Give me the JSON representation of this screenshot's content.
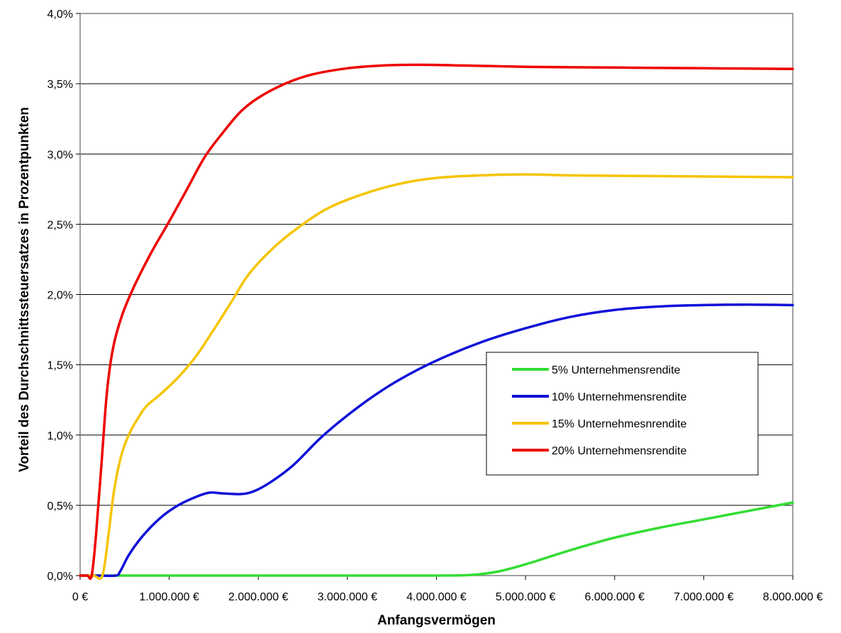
{
  "chart_data": {
    "type": "line",
    "xlabel": "Anfangsvermögen",
    "ylabel": "Vorteil des Durchschnittssteuersatzes in Prozentpunkten",
    "xlim": [
      0,
      8000000
    ],
    "ylim": [
      0,
      4.0
    ],
    "x_ticks": [
      {
        "value": 0,
        "label": "0 €"
      },
      {
        "value": 1000000,
        "label": "1.000.000 €"
      },
      {
        "value": 2000000,
        "label": "2.000.000 €"
      },
      {
        "value": 3000000,
        "label": "3.000.000 €"
      },
      {
        "value": 4000000,
        "label": "4.000.000 €"
      },
      {
        "value": 5000000,
        "label": "5.000.000 €"
      },
      {
        "value": 6000000,
        "label": "6.000.000 €"
      },
      {
        "value": 7000000,
        "label": "7.000.000 €"
      },
      {
        "value": 8000000,
        "label": "8.000.000 €"
      }
    ],
    "y_ticks": [
      {
        "value": 0,
        "label": "0,0%"
      },
      {
        "value": 0.5,
        "label": "0,5%"
      },
      {
        "value": 1.0,
        "label": "1,0%"
      },
      {
        "value": 1.5,
        "label": "1,5%"
      },
      {
        "value": 2.0,
        "label": "2,0%"
      },
      {
        "value": 2.5,
        "label": "2,5%"
      },
      {
        "value": 3.0,
        "label": "3,0%"
      },
      {
        "value": 3.5,
        "label": "3,5%"
      },
      {
        "value": 4.0,
        "label": "4,0%"
      }
    ],
    "grid": "horizontal",
    "legend_position": "right",
    "series": [
      {
        "name": "5% Unternehmensrendite",
        "color": "#33dd33",
        "points": [
          [
            0,
            0
          ],
          [
            1000000,
            0
          ],
          [
            2000000,
            0
          ],
          [
            3000000,
            0
          ],
          [
            4000000,
            0
          ],
          [
            4400000,
            0.005
          ],
          [
            4700000,
            0.03
          ],
          [
            5000000,
            0.08
          ],
          [
            5500000,
            0.18
          ],
          [
            6000000,
            0.27
          ],
          [
            6500000,
            0.34
          ],
          [
            7000000,
            0.4
          ],
          [
            7500000,
            0.46
          ],
          [
            8000000,
            0.52
          ]
        ]
      },
      {
        "name": "10% Unternehmensrendite",
        "color": "#1010d8",
        "points": [
          [
            0,
            0
          ],
          [
            200000,
            0
          ],
          [
            400000,
            0
          ],
          [
            450000,
            0.03
          ],
          [
            550000,
            0.15
          ],
          [
            700000,
            0.28
          ],
          [
            900000,
            0.41
          ],
          [
            1100000,
            0.5
          ],
          [
            1300000,
            0.56
          ],
          [
            1450000,
            0.59
          ],
          [
            1600000,
            0.585
          ],
          [
            1800000,
            0.58
          ],
          [
            1950000,
            0.6
          ],
          [
            2150000,
            0.67
          ],
          [
            2400000,
            0.79
          ],
          [
            2700000,
            0.98
          ],
          [
            3000000,
            1.14
          ],
          [
            3300000,
            1.28
          ],
          [
            3600000,
            1.4
          ],
          [
            4000000,
            1.53
          ],
          [
            4500000,
            1.66
          ],
          [
            5000000,
            1.76
          ],
          [
            5500000,
            1.84
          ],
          [
            6000000,
            1.89
          ],
          [
            6500000,
            1.915
          ],
          [
            7000000,
            1.925
          ],
          [
            7500000,
            1.928
          ],
          [
            8000000,
            1.925
          ]
        ]
      },
      {
        "name": "15% Unternehmesnrendite",
        "color": "#f5c400",
        "points": [
          [
            0,
            0
          ],
          [
            150000,
            0
          ],
          [
            250000,
            0
          ],
          [
            320000,
            0.3
          ],
          [
            380000,
            0.6
          ],
          [
            460000,
            0.85
          ],
          [
            560000,
            1.02
          ],
          [
            680000,
            1.15
          ],
          [
            750000,
            1.21
          ],
          [
            900000,
            1.29
          ],
          [
            1100000,
            1.41
          ],
          [
            1300000,
            1.56
          ],
          [
            1500000,
            1.75
          ],
          [
            1700000,
            1.95
          ],
          [
            1900000,
            2.15
          ],
          [
            2200000,
            2.35
          ],
          [
            2500000,
            2.5
          ],
          [
            2800000,
            2.62
          ],
          [
            3200000,
            2.72
          ],
          [
            3600000,
            2.79
          ],
          [
            4000000,
            2.83
          ],
          [
            4500000,
            2.848
          ],
          [
            5000000,
            2.855
          ],
          [
            5500000,
            2.848
          ],
          [
            6000000,
            2.845
          ],
          [
            7000000,
            2.84
          ],
          [
            8000000,
            2.835
          ]
        ]
      },
      {
        "name": "20% Unternehmensrendite",
        "color": "#ee0000",
        "points": [
          [
            0,
            0
          ],
          [
            80000,
            0
          ],
          [
            130000,
            0
          ],
          [
            180000,
            0.3
          ],
          [
            240000,
            0.8
          ],
          [
            300000,
            1.3
          ],
          [
            370000,
            1.62
          ],
          [
            470000,
            1.85
          ],
          [
            600000,
            2.05
          ],
          [
            800000,
            2.3
          ],
          [
            1000000,
            2.52
          ],
          [
            1200000,
            2.75
          ],
          [
            1400000,
            2.98
          ],
          [
            1600000,
            3.15
          ],
          [
            1800000,
            3.3
          ],
          [
            2000000,
            3.4
          ],
          [
            2300000,
            3.5
          ],
          [
            2600000,
            3.565
          ],
          [
            3000000,
            3.61
          ],
          [
            3400000,
            3.63
          ],
          [
            3800000,
            3.635
          ],
          [
            4300000,
            3.63
          ],
          [
            5000000,
            3.62
          ],
          [
            6000000,
            3.615
          ],
          [
            7000000,
            3.61
          ],
          [
            8000000,
            3.605
          ]
        ]
      }
    ]
  }
}
